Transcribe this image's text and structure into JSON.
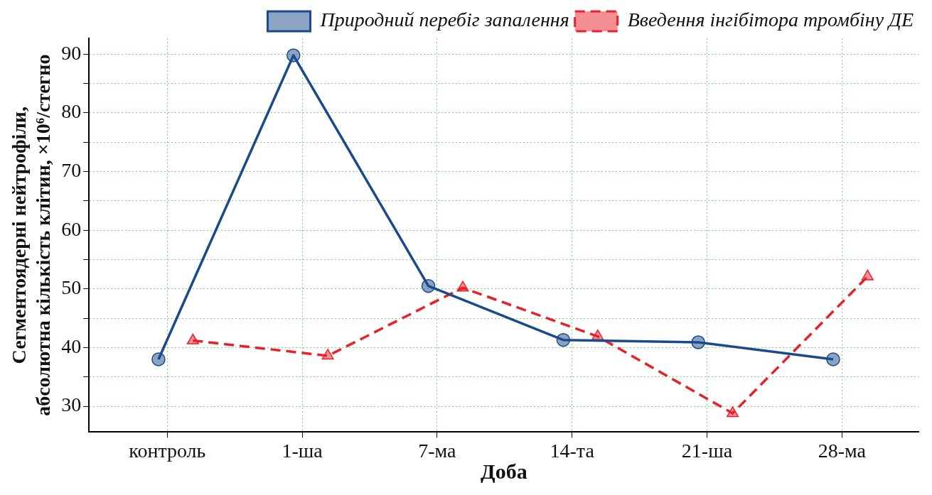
{
  "chart_data": {
    "type": "line",
    "xlabel": "Доба",
    "ylabel": "Сегментоядерні нейтрофіли,\nабсолютна кількість клітин, ×10⁶/стегно",
    "categories": [
      "контроль",
      "1-ша",
      "7-ма",
      "14-та",
      "21-ша",
      "28-ма"
    ],
    "series": [
      {
        "name": "Природний перебіг запалення",
        "color": "#1a4a8a",
        "marker": "circle",
        "line_style": "solid",
        "values": [
          38.0,
          89.8,
          50.5,
          41.3,
          40.9,
          38.0
        ]
      },
      {
        "name": "Введення інгібітора тромбіну ДЕ",
        "color": "#e8202a",
        "marker": "triangle",
        "line_style": "dashed",
        "values": [
          41.2,
          38.6,
          50.2,
          41.9,
          28.8,
          52.1
        ]
      }
    ],
    "ylim": [
      25.6,
      92.7
    ],
    "yticks": [
      30,
      {
        "value": 35,
        "label": null
      },
      40,
      {
        "value": 45,
        "label": null
      },
      50,
      {
        "value": 55,
        "label": null
      },
      60,
      {
        "value": 65,
        "label": null
      },
      70,
      {
        "value": 75,
        "label": null
      },
      80,
      {
        "value": 85,
        "label": null
      },
      90
    ],
    "grid": true,
    "legend": "top"
  }
}
